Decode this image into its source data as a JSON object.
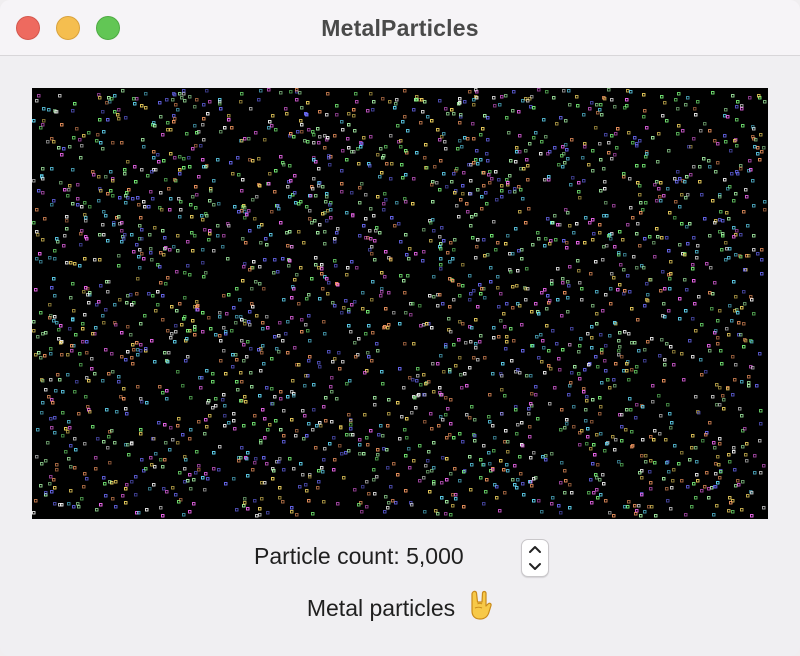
{
  "window": {
    "title": "MetalParticles"
  },
  "canvas": {
    "background": "#000000",
    "particle_colors": [
      "#ffffff",
      "#ffe066",
      "#7fff7f",
      "#6f6fff",
      "#ff6fff",
      "#66e0ff",
      "#ff9f66",
      "#b0ffb0"
    ]
  },
  "controls": {
    "particle_count_label": "Particle count: 5,000",
    "stepper_up_icon": "chevron-up-icon",
    "stepper_down_icon": "chevron-down-icon"
  },
  "footer": {
    "caption": "Metal particles",
    "emoji_icon": "rock-on-hand-icon"
  }
}
